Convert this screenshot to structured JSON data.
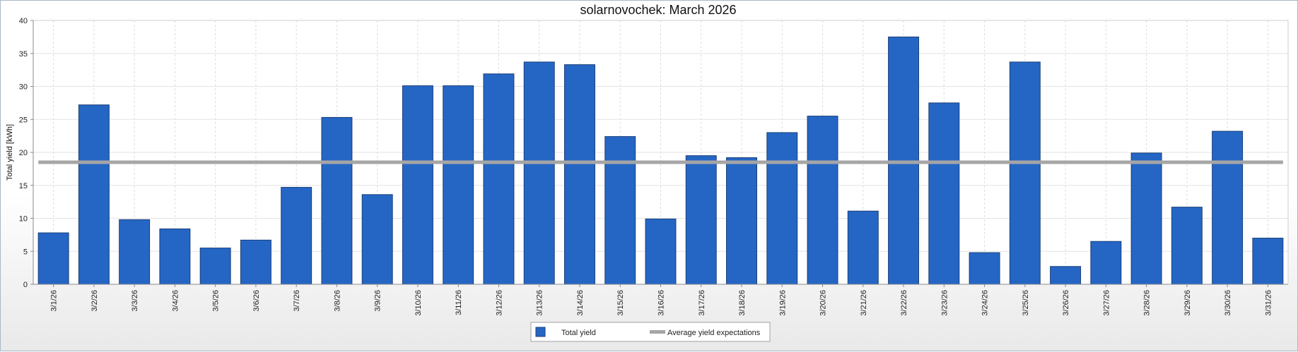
{
  "chart_data": {
    "type": "bar",
    "title": "solarnovochek: March 2026",
    "xlabel": "",
    "ylabel": "Total yield [kWh]",
    "ylim": [
      0,
      40
    ],
    "yticks": [
      0,
      5,
      10,
      15,
      20,
      25,
      30,
      35,
      40
    ],
    "grid": true,
    "legend_position": "bottom-center",
    "categories": [
      "3/1/26",
      "3/2/26",
      "3/3/26",
      "3/4/26",
      "3/5/26",
      "3/6/26",
      "3/7/26",
      "3/8/26",
      "3/9/26",
      "3/10/26",
      "3/11/26",
      "3/12/26",
      "3/13/26",
      "3/14/26",
      "3/15/26",
      "3/16/26",
      "3/17/26",
      "3/18/26",
      "3/19/26",
      "3/20/26",
      "3/21/26",
      "3/22/26",
      "3/23/26",
      "3/24/26",
      "3/25/26",
      "3/26/26",
      "3/27/26",
      "3/28/26",
      "3/29/26",
      "3/30/26",
      "3/31/26"
    ],
    "series": [
      {
        "name": "Total yield",
        "kind": "bar",
        "color": "#2566c4",
        "values": [
          7.8,
          27.2,
          9.8,
          8.4,
          5.5,
          6.7,
          14.7,
          25.3,
          13.6,
          30.1,
          30.1,
          31.9,
          33.7,
          33.3,
          22.4,
          9.9,
          19.5,
          19.2,
          23.0,
          25.5,
          11.1,
          37.5,
          27.5,
          4.8,
          33.7,
          2.7,
          6.5,
          19.9,
          11.7,
          23.2,
          7.0
        ]
      },
      {
        "name": "Average yield expectations",
        "kind": "line",
        "color": "#a6a6a6",
        "value": 18.5
      }
    ]
  }
}
